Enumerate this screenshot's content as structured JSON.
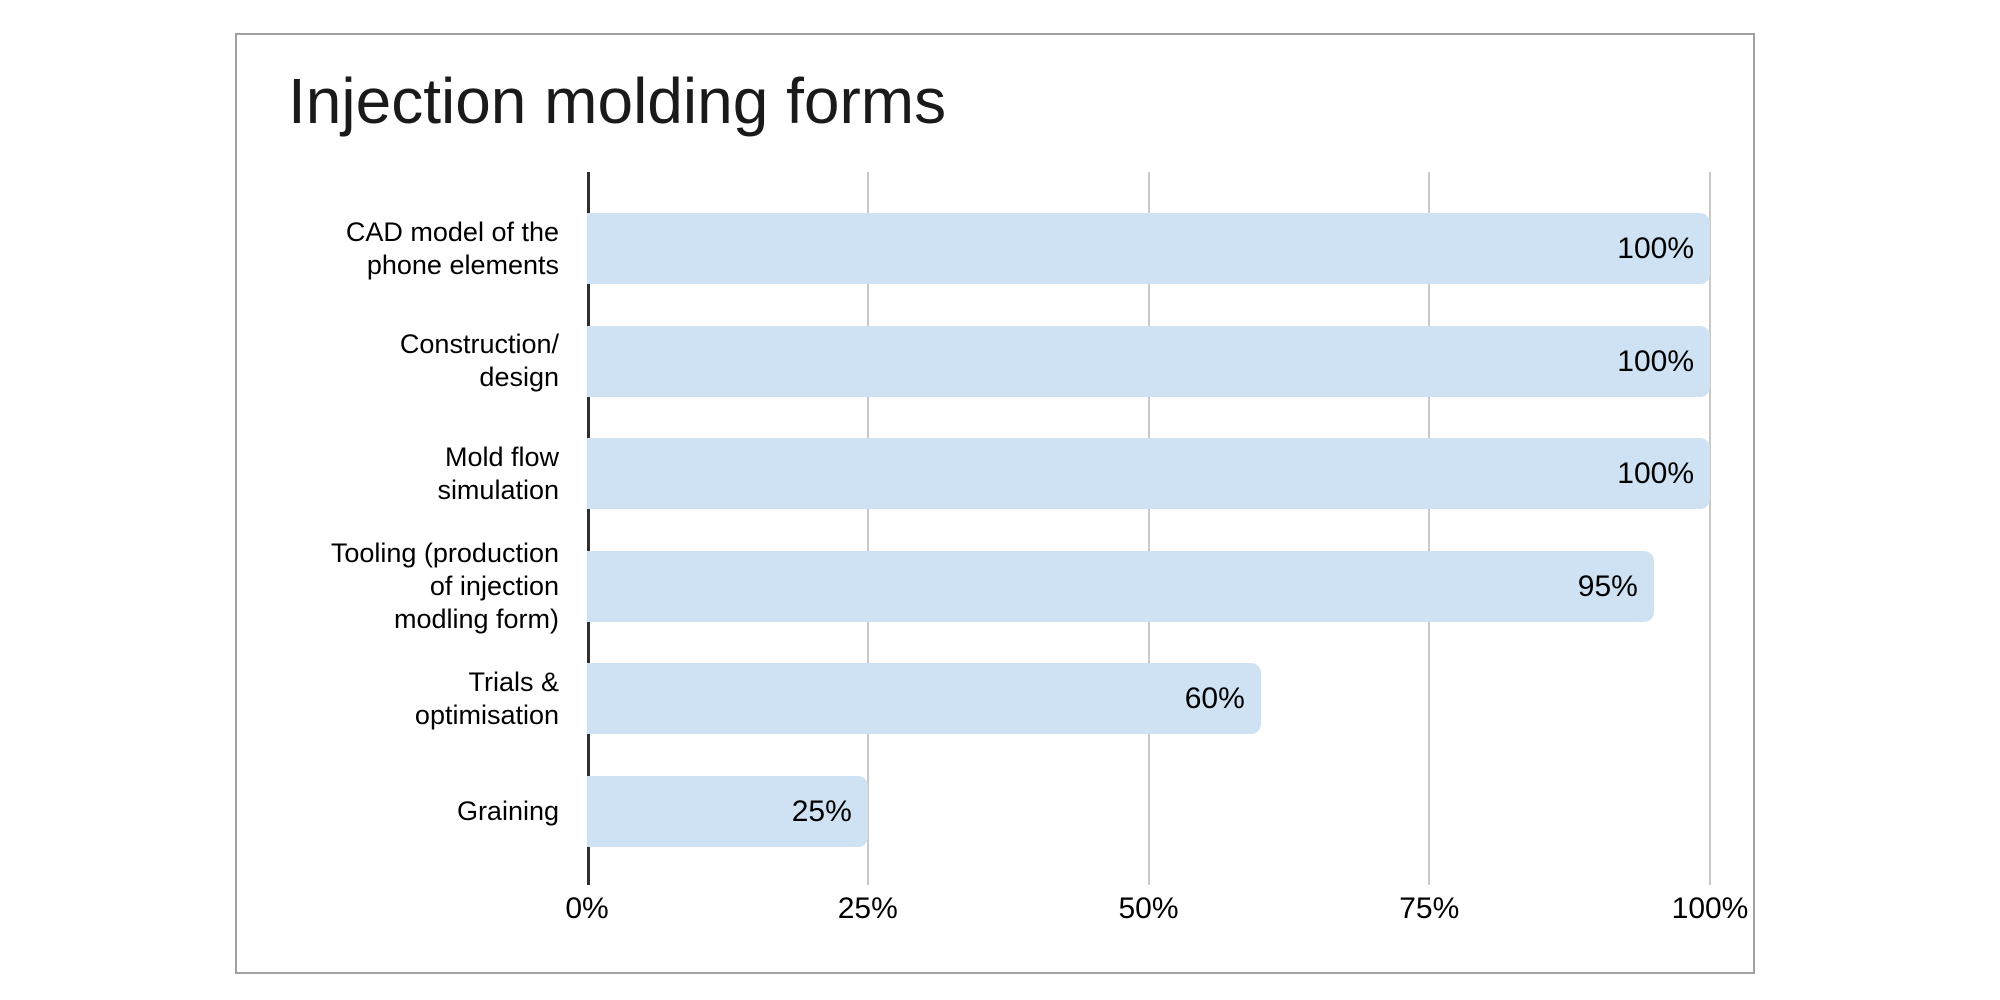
{
  "window": {
    "background_color": "#ffffff",
    "frame_border_color": "#a1a1a1"
  },
  "chart_data": {
    "type": "bar",
    "orientation": "horizontal",
    "title": "Injection molding forms",
    "categories": [
      {
        "label": "CAD model of the phone elements",
        "lines": [
          "CAD model of the",
          "phone elements"
        ]
      },
      {
        "label": "Construction/design",
        "lines": [
          "Construction/",
          "design"
        ]
      },
      {
        "label": "Mold flow simulation",
        "lines": [
          "Mold flow",
          "simulation"
        ]
      },
      {
        "label": "Tooling (production of injection modling form)",
        "lines": [
          "Tooling (production",
          "of injection",
          "modling form)"
        ]
      },
      {
        "label": "Trials & optimisation",
        "lines": [
          "Trials &",
          "optimisation"
        ]
      },
      {
        "label": "Graining",
        "lines": [
          "Graining"
        ]
      }
    ],
    "values": [
      100,
      100,
      100,
      95,
      60,
      25
    ],
    "value_labels": [
      "100%",
      "100%",
      "100%",
      "95%",
      "60%",
      "25%"
    ],
    "x_ticks": [
      {
        "value": 0,
        "label": "0%"
      },
      {
        "value": 25,
        "label": "25%"
      },
      {
        "value": 50,
        "label": "50%"
      },
      {
        "value": 75,
        "label": "75%"
      },
      {
        "value": 100,
        "label": "100%"
      }
    ],
    "xlim": [
      0,
      100
    ],
    "xlabel": "",
    "ylabel": "",
    "grid": true,
    "legend": false,
    "colors": {
      "bar_fill": "#cfe2f3",
      "gridline": "#c9c9c9",
      "axis_line": "#2f2f2f",
      "text": "#000000",
      "title_text": "#1a1a1a"
    }
  }
}
